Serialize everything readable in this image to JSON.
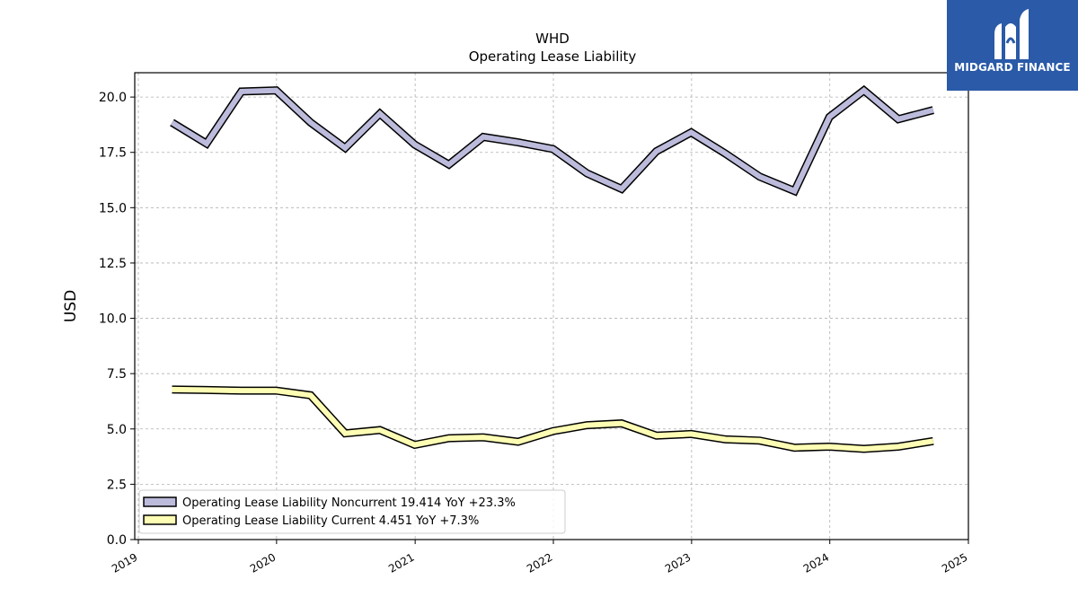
{
  "logo": {
    "text": "MIDGARD FINANCE",
    "icon": "midgard-logo-mark",
    "color": "#2a5aa8"
  },
  "chart_data": {
    "type": "line",
    "title": "WHD",
    "subtitle": "Operating Lease Liability",
    "ylabel": "USD",
    "xlabel": "",
    "ylim": [
      0,
      21.1
    ],
    "xlim": [
      "2019-01-01",
      "2025-01-01"
    ],
    "yticks": [
      "0.0",
      "2.5",
      "5.0",
      "7.5",
      "10.0",
      "12.5",
      "15.0",
      "17.5",
      "20.0"
    ],
    "xticks": [
      "2019",
      "2020",
      "2021",
      "2022",
      "2023",
      "2024",
      "2025"
    ],
    "grid": true,
    "legend_position": "lower-left",
    "series": [
      {
        "name": "Operating Lease Liability Noncurrent",
        "legend": "Operating Lease Liability Noncurrent  19.414 YoY +23.3%",
        "color": "#bcbbdc",
        "x": [
          "2019-03-31",
          "2019-06-30",
          "2019-09-30",
          "2019-12-31",
          "2020-03-31",
          "2020-06-30",
          "2020-09-30",
          "2020-12-31",
          "2021-03-31",
          "2021-06-30",
          "2021-09-30",
          "2021-12-31",
          "2022-03-31",
          "2022-06-30",
          "2022-09-30",
          "2022-12-31",
          "2023-03-31",
          "2023-06-30",
          "2023-09-30",
          "2023-12-31",
          "2024-03-31",
          "2024-06-30",
          "2024-09-30"
        ],
        "values": [
          18.85,
          17.9,
          20.25,
          20.3,
          18.85,
          17.7,
          19.25,
          17.85,
          16.95,
          18.2,
          17.95,
          17.65,
          16.55,
          15.85,
          17.55,
          18.4,
          17.45,
          16.4,
          15.75,
          19.1,
          20.3,
          19.0,
          19.414
        ]
      },
      {
        "name": "Operating Lease Liability Current",
        "legend": "Operating Lease Liability Current  4.451 YoY +7.3%",
        "color": "#fdfdb4",
        "x": [
          "2019-03-31",
          "2019-06-30",
          "2019-09-30",
          "2019-12-31",
          "2020-03-31",
          "2020-06-30",
          "2020-09-30",
          "2020-12-31",
          "2021-03-31",
          "2021-06-30",
          "2021-09-30",
          "2021-12-31",
          "2022-03-31",
          "2022-06-30",
          "2022-09-30",
          "2022-12-31",
          "2023-03-31",
          "2023-06-30",
          "2023-09-30",
          "2023-12-31",
          "2024-03-31",
          "2024-06-30",
          "2024-09-30"
        ],
        "values": [
          6.78,
          6.76,
          6.73,
          6.73,
          6.52,
          4.8,
          4.95,
          4.28,
          4.58,
          4.62,
          4.42,
          4.9,
          5.17,
          5.25,
          4.7,
          4.77,
          4.53,
          4.47,
          4.15,
          4.2,
          4.1,
          4.2,
          4.451
        ]
      }
    ]
  }
}
